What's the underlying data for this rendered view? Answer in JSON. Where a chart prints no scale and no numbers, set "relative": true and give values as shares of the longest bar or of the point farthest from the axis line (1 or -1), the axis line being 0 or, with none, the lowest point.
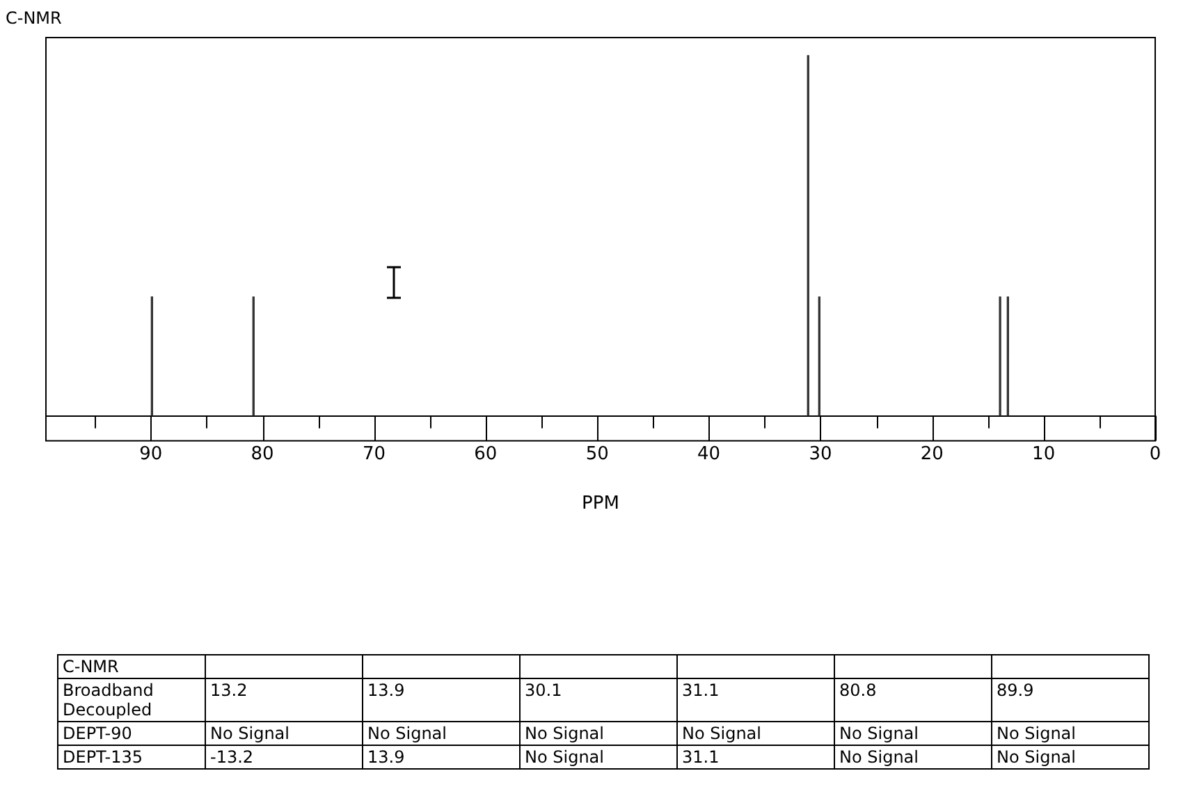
{
  "chart_data": [
    {
      "type": "bar",
      "title": "C-NMR",
      "xlabel": "PPM",
      "relative": true,
      "x": [
        89.9,
        80.8,
        31.1,
        30.1,
        13.9,
        13.2
      ],
      "values": [
        0.33,
        0.33,
        1,
        0.33,
        0.33,
        0.33
      ],
      "color": "#333333",
      "xlim": [
        99.4,
        0
      ],
      "xticks": [
        {
          "value": 95,
          "label": null
        },
        90,
        {
          "value": 85,
          "label": null
        },
        80,
        {
          "value": 75,
          "label": null
        },
        70,
        {
          "value": 65,
          "label": null
        },
        60,
        {
          "value": 55,
          "label": null
        },
        50,
        {
          "value": 45,
          "label": null
        },
        40,
        {
          "value": 35,
          "label": null
        },
        30,
        {
          "value": 25,
          "label": null
        },
        20,
        {
          "value": 15,
          "label": null
        },
        10,
        {
          "value": 5,
          "label": null
        },
        0
      ],
      "grid": false,
      "legend": false
    },
    {
      "type": "other",
      "y_categories": [
        "C-NMR",
        "Broadband Decoupled",
        "DEPT-90",
        "DEPT-135"
      ],
      "cell_labels": [
        [
          null,
          null,
          null,
          null,
          null,
          null
        ],
        [
          "13.2",
          "13.9",
          "30.1",
          "31.1",
          "80.8",
          "89.9"
        ],
        [
          "No Signal",
          "No Signal",
          "No Signal",
          "No Signal",
          "No Signal",
          "No Signal"
        ],
        [
          "-13.2",
          "13.9",
          "No Signal",
          "31.1",
          "No Signal",
          "No Signal"
        ]
      ]
    }
  ]
}
